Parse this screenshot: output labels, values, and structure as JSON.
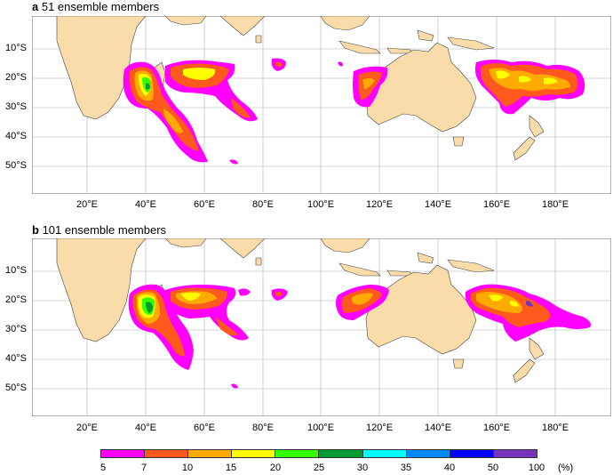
{
  "panel_a": {
    "letter": "a",
    "title": "51 ensemble members"
  },
  "panel_b": {
    "letter": "b",
    "title": "101 ensemble members"
  },
  "lat_labels": [
    "10°S",
    "20°S",
    "30°S",
    "40°S",
    "50°S"
  ],
  "lon_labels": [
    "20°E",
    "40°E",
    "60°E",
    "80°E",
    "100°E",
    "120°E",
    "140°E",
    "160°E",
    "180°E"
  ],
  "colorbar": {
    "labels": [
      "5",
      "7",
      "10",
      "15",
      "20",
      "25",
      "30",
      "35",
      "40",
      "50",
      "100"
    ],
    "unit": "(%)",
    "colors": [
      "#ff00ff",
      "#ff5a1e",
      "#ffaa00",
      "#ffff00",
      "#33ff00",
      "#009933",
      "#00ffff",
      "#0088ff",
      "#0000ff",
      "#7733bb"
    ]
  },
  "colors": {
    "land": "#fadcaa",
    "grid": "#b0b0b0"
  }
}
